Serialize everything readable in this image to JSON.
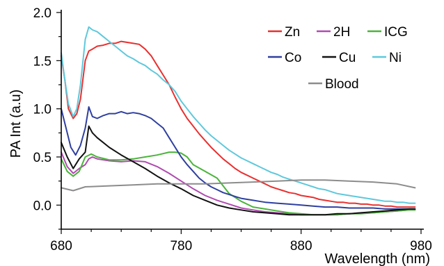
{
  "chart_data": {
    "type": "line",
    "xlabel": "Wavelength (nm)",
    "ylabel": "PA Int (a.u)",
    "xlim": [
      680,
      980
    ],
    "ylim": [
      -0.25,
      2.0
    ],
    "xticks": [
      680,
      780,
      880,
      980
    ],
    "xtick_labels": [
      "680",
      "780",
      "880",
      "980"
    ],
    "yticks": [
      0.0,
      0.5,
      1.0,
      1.5,
      2.0
    ],
    "ytick_labels": [
      "0.0",
      "0.5",
      "1.0",
      "1.5",
      "2.0"
    ],
    "legend_position": "top-right",
    "grid": false,
    "series": [
      {
        "name": "Zn",
        "color": "#e8302f",
        "x": [
          680,
          683,
          686,
          690,
          693,
          696,
          700,
          703,
          706,
          710,
          715,
          720,
          725,
          730,
          735,
          740,
          745,
          750,
          755,
          760,
          765,
          770,
          775,
          780,
          785,
          790,
          795,
          800,
          805,
          810,
          815,
          820,
          825,
          830,
          835,
          840,
          845,
          850,
          855,
          860,
          865,
          870,
          875,
          880,
          885,
          890,
          895,
          900,
          905,
          910,
          915,
          920,
          925,
          930,
          935,
          940,
          945,
          950,
          955,
          960,
          965,
          970,
          975
        ],
        "y": [
          1.55,
          1.3,
          1.0,
          0.9,
          0.95,
          1.1,
          1.5,
          1.6,
          1.62,
          1.65,
          1.66,
          1.68,
          1.68,
          1.7,
          1.69,
          1.68,
          1.67,
          1.62,
          1.55,
          1.45,
          1.35,
          1.25,
          1.12,
          1.0,
          0.9,
          0.82,
          0.74,
          0.67,
          0.6,
          0.54,
          0.48,
          0.43,
          0.38,
          0.34,
          0.31,
          0.28,
          0.25,
          0.22,
          0.19,
          0.17,
          0.15,
          0.13,
          0.12,
          0.1,
          0.09,
          0.08,
          0.06,
          0.05,
          0.04,
          0.03,
          0.03,
          0.02,
          0.02,
          0.01,
          0.01,
          0.0,
          0.0,
          -0.01,
          -0.01,
          -0.02,
          -0.02,
          -0.02,
          -0.02
        ]
      },
      {
        "name": "2H",
        "color": "#b04bb0",
        "x": [
          680,
          685,
          690,
          695,
          700,
          703,
          706,
          710,
          715,
          720,
          730,
          740,
          750,
          760,
          770,
          780,
          790,
          800,
          810,
          820,
          830,
          840,
          850,
          860,
          870,
          880,
          890,
          900,
          910,
          920,
          930,
          940,
          950,
          960,
          970,
          975
        ],
        "y": [
          0.55,
          0.4,
          0.33,
          0.38,
          0.42,
          0.48,
          0.5,
          0.48,
          0.47,
          0.46,
          0.45,
          0.46,
          0.45,
          0.4,
          0.33,
          0.25,
          0.17,
          0.1,
          0.05,
          0.01,
          -0.03,
          -0.05,
          -0.07,
          -0.08,
          -0.09,
          -0.1,
          -0.1,
          -0.1,
          -0.1,
          -0.09,
          -0.08,
          -0.08,
          -0.07,
          -0.06,
          -0.05,
          -0.05
        ]
      },
      {
        "name": "ICG",
        "color": "#4ab43a",
        "x": [
          680,
          685,
          690,
          695,
          700,
          705,
          710,
          720,
          730,
          740,
          750,
          760,
          770,
          775,
          780,
          785,
          790,
          800,
          810,
          815,
          820,
          830,
          840,
          850,
          860,
          870,
          880,
          890,
          900,
          910,
          920,
          930,
          940,
          950,
          960,
          970,
          975
        ],
        "y": [
          0.48,
          0.35,
          0.3,
          0.35,
          0.5,
          0.53,
          0.5,
          0.47,
          0.47,
          0.48,
          0.5,
          0.52,
          0.55,
          0.55,
          0.54,
          0.5,
          0.42,
          0.35,
          0.28,
          0.2,
          0.12,
          0.04,
          -0.02,
          -0.04,
          -0.06,
          -0.08,
          -0.09,
          -0.1,
          -0.1,
          -0.1,
          -0.09,
          -0.09,
          -0.08,
          -0.07,
          -0.06,
          -0.05,
          -0.05
        ]
      },
      {
        "name": "Co",
        "color": "#2e3fa0",
        "x": [
          680,
          684,
          688,
          692,
          696,
          700,
          703,
          706,
          710,
          715,
          720,
          725,
          730,
          735,
          740,
          745,
          750,
          755,
          760,
          765,
          770,
          775,
          780,
          785,
          790,
          795,
          800,
          805,
          810,
          815,
          820,
          825,
          830,
          835,
          840,
          845,
          850,
          860,
          870,
          880,
          890,
          900,
          910,
          920,
          930,
          940,
          950,
          960,
          970,
          975
        ],
        "y": [
          1.0,
          0.8,
          0.6,
          0.52,
          0.62,
          0.8,
          1.02,
          0.92,
          0.9,
          0.93,
          0.95,
          0.95,
          0.97,
          0.95,
          0.96,
          0.95,
          0.93,
          0.9,
          0.85,
          0.8,
          0.7,
          0.6,
          0.5,
          0.42,
          0.35,
          0.28,
          0.23,
          0.19,
          0.16,
          0.13,
          0.11,
          0.09,
          0.07,
          0.06,
          0.05,
          0.04,
          0.03,
          0.02,
          0.01,
          0.0,
          -0.01,
          -0.02,
          -0.02,
          -0.03,
          -0.03,
          -0.03,
          -0.04,
          -0.04,
          -0.04,
          -0.04
        ]
      },
      {
        "name": "Cu",
        "color": "#111111",
        "x": [
          680,
          685,
          690,
          695,
          700,
          703,
          706,
          710,
          715,
          720,
          730,
          740,
          750,
          760,
          770,
          780,
          790,
          800,
          810,
          820,
          830,
          840,
          850,
          860,
          870,
          880,
          890,
          900,
          910,
          920,
          930,
          940,
          950,
          960,
          970,
          975
        ],
        "y": [
          0.65,
          0.5,
          0.38,
          0.48,
          0.55,
          0.82,
          0.75,
          0.7,
          0.65,
          0.6,
          0.52,
          0.45,
          0.38,
          0.3,
          0.23,
          0.17,
          0.1,
          0.05,
          0.0,
          -0.03,
          -0.05,
          -0.07,
          -0.08,
          -0.09,
          -0.1,
          -0.1,
          -0.1,
          -0.1,
          -0.09,
          -0.09,
          -0.08,
          -0.07,
          -0.06,
          -0.05,
          -0.04,
          -0.04
        ]
      },
      {
        "name": "Ni",
        "color": "#5ec8dc",
        "x": [
          680,
          683,
          686,
          690,
          693,
          696,
          700,
          703,
          706,
          710,
          715,
          720,
          725,
          730,
          735,
          740,
          745,
          750,
          755,
          760,
          765,
          770,
          775,
          780,
          785,
          790,
          795,
          800,
          805,
          810,
          815,
          820,
          825,
          830,
          835,
          840,
          845,
          850,
          855,
          860,
          865,
          870,
          875,
          880,
          885,
          890,
          895,
          900,
          905,
          910,
          915,
          920,
          925,
          930,
          935,
          940,
          945,
          950,
          955,
          960,
          965,
          970,
          975
        ],
        "y": [
          1.58,
          1.3,
          1.05,
          0.92,
          1.0,
          1.25,
          1.72,
          1.85,
          1.82,
          1.8,
          1.75,
          1.7,
          1.65,
          1.6,
          1.55,
          1.52,
          1.48,
          1.45,
          1.4,
          1.36,
          1.3,
          1.25,
          1.18,
          1.08,
          1.0,
          0.92,
          0.85,
          0.78,
          0.72,
          0.67,
          0.62,
          0.57,
          0.53,
          0.49,
          0.46,
          0.43,
          0.4,
          0.37,
          0.34,
          0.32,
          0.29,
          0.27,
          0.25,
          0.23,
          0.21,
          0.19,
          0.17,
          0.16,
          0.14,
          0.12,
          0.11,
          0.1,
          0.09,
          0.08,
          0.07,
          0.06,
          0.05,
          0.04,
          0.04,
          0.03,
          0.03,
          0.02,
          0.02
        ]
      },
      {
        "name": "Blood",
        "color": "#8c8c8c",
        "x": [
          680,
          690,
          700,
          720,
          740,
          760,
          780,
          800,
          820,
          840,
          860,
          880,
          900,
          920,
          940,
          960,
          975
        ],
        "y": [
          0.18,
          0.15,
          0.19,
          0.2,
          0.21,
          0.22,
          0.22,
          0.22,
          0.23,
          0.24,
          0.25,
          0.26,
          0.26,
          0.25,
          0.24,
          0.22,
          0.18
        ]
      }
    ]
  }
}
